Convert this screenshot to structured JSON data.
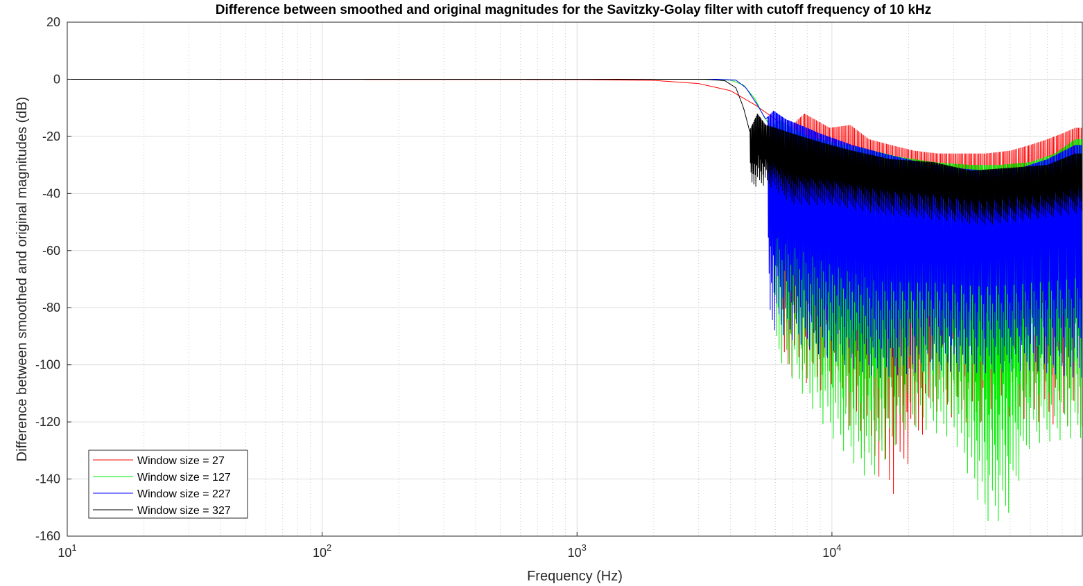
{
  "chart_data": {
    "type": "line",
    "title": "Difference between smoothed and original magnitudes for the Savitzky-Golay filter with cutoff frequency of 10 kHz",
    "xlabel": "Frequency (Hz)",
    "ylabel": "Difference between smoothed and original magnitudes (dB)",
    "xscale": "log",
    "xlim": [
      10,
      96000
    ],
    "ylim": [
      -160,
      20
    ],
    "yticks": [
      20,
      0,
      -20,
      -40,
      -60,
      -80,
      -100,
      -120,
      -140,
      -160
    ],
    "yticklabels": [
      "20",
      "0",
      "-20",
      "-40",
      "-60",
      "-80",
      "-100",
      "-120",
      "-140",
      "-160"
    ],
    "xticks": [
      {
        "base": "10",
        "exp": "1",
        "value": 10
      },
      {
        "base": "10",
        "exp": "2",
        "value": 100
      },
      {
        "base": "10",
        "exp": "3",
        "value": 1000
      },
      {
        "base": "10",
        "exp": "4",
        "value": 10000
      }
    ],
    "grid": true,
    "legend_position": "bottom-left",
    "series": [
      {
        "name": "Window size = 27",
        "color": "#ff0000",
        "points": [
          [
            10,
            0
          ],
          [
            1000,
            -0.1
          ],
          [
            2000,
            -0.4
          ],
          [
            3000,
            -1.5
          ],
          [
            4000,
            -4
          ],
          [
            5000,
            -9
          ],
          [
            6000,
            -14
          ],
          [
            6600,
            -18
          ],
          [
            7800,
            -12
          ],
          [
            9800,
            -17
          ],
          [
            11800,
            -16
          ],
          [
            14000,
            -21
          ],
          [
            17000,
            -23
          ],
          [
            21000,
            -25
          ],
          [
            26000,
            -26
          ],
          [
            32000,
            -26
          ],
          [
            40000,
            -26
          ],
          [
            50000,
            -25
          ],
          [
            60000,
            -23
          ],
          [
            70000,
            -21
          ],
          [
            80000,
            -19
          ],
          [
            90000,
            -17
          ]
        ]
      },
      {
        "name": "Window size = 127",
        "color": "#00ee00",
        "points": [
          [
            10,
            0
          ],
          [
            3000,
            0
          ],
          [
            4000,
            -0.3
          ],
          [
            4500,
            -2
          ],
          [
            5000,
            -7
          ],
          [
            5400,
            -13
          ],
          [
            5800,
            -17
          ],
          [
            6200,
            -14
          ],
          [
            7000,
            -17
          ],
          [
            8000,
            -20
          ],
          [
            10000,
            -22
          ],
          [
            13000,
            -24
          ],
          [
            18000,
            -27
          ],
          [
            25000,
            -29
          ],
          [
            35000,
            -30
          ],
          [
            45000,
            -30
          ],
          [
            60000,
            -29
          ],
          [
            75000,
            -26
          ],
          [
            90000,
            -21
          ]
        ]
      },
      {
        "name": "Window size = 227",
        "color": "#0000ff",
        "points": [
          [
            10,
            0
          ],
          [
            3500,
            0
          ],
          [
            4200,
            -0.3
          ],
          [
            4600,
            -3
          ],
          [
            5100,
            -9
          ],
          [
            5500,
            -14
          ],
          [
            5900,
            -11
          ],
          [
            6600,
            -14
          ],
          [
            7500,
            -16
          ],
          [
            9000,
            -19
          ],
          [
            12000,
            -23
          ],
          [
            16000,
            -26
          ],
          [
            22000,
            -29
          ],
          [
            30000,
            -31
          ],
          [
            40000,
            -32
          ],
          [
            55000,
            -31
          ],
          [
            70000,
            -28
          ],
          [
            90000,
            -23
          ]
        ]
      },
      {
        "name": "Window size = 327",
        "color": "#000000",
        "points": [
          [
            10,
            0
          ],
          [
            3200,
            0
          ],
          [
            3800,
            -0.5
          ],
          [
            4200,
            -3
          ],
          [
            4500,
            -10
          ],
          [
            4750,
            -18
          ],
          [
            5100,
            -12
          ],
          [
            5500,
            -16
          ],
          [
            6000,
            -17
          ],
          [
            7000,
            -19
          ],
          [
            9000,
            -22
          ],
          [
            12000,
            -25
          ],
          [
            17000,
            -28
          ],
          [
            25000,
            -29
          ],
          [
            35000,
            -32
          ],
          [
            50000,
            -31
          ],
          [
            70000,
            -30
          ],
          [
            90000,
            -26
          ]
        ]
      }
    ],
    "envelope_lows": {
      "Window size = 27": [
        [
          6300,
          -106
        ],
        [
          10000,
          -115
        ],
        [
          17000,
          -152
        ],
        [
          25000,
          -120
        ],
        [
          35000,
          -125
        ],
        [
          50000,
          -122
        ],
        [
          70000,
          -125
        ],
        [
          90000,
          -126
        ]
      ],
      "Window size = 127": [
        [
          5900,
          -99
        ],
        [
          10000,
          -130
        ],
        [
          14000,
          -146
        ],
        [
          20000,
          -125
        ],
        [
          30000,
          -130
        ],
        [
          40000,
          -160
        ],
        [
          48000,
          -160
        ],
        [
          60000,
          -132
        ],
        [
          90000,
          -130
        ]
      ],
      "Window size = 227": [
        [
          5600,
          -90
        ],
        [
          9000,
          -100
        ],
        [
          15000,
          -108
        ],
        [
          25000,
          -105
        ],
        [
          40000,
          -106
        ],
        [
          60000,
          -105
        ],
        [
          90000,
          -108
        ]
      ],
      "Window size = 327": [
        [
          4750,
          -39
        ],
        [
          5600,
          -38
        ],
        [
          7000,
          -45
        ],
        [
          10000,
          -45
        ],
        [
          15000,
          -48
        ],
        [
          25000,
          -50
        ],
        [
          40000,
          -52
        ],
        [
          60000,
          -50
        ],
        [
          90000,
          -48
        ]
      ]
    }
  }
}
